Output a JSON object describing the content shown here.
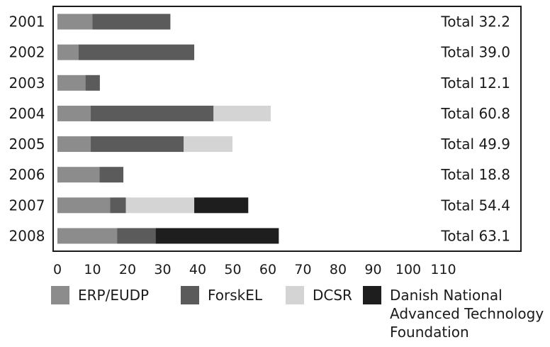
{
  "chart_data": {
    "type": "bar",
    "orientation": "horizontal",
    "stacked": true,
    "categories": [
      "2001",
      "2002",
      "2003",
      "2004",
      "2005",
      "2006",
      "2007",
      "2008"
    ],
    "series": [
      {
        "name": "ERP/EUDP",
        "color": "#8c8c8c",
        "values": [
          10.0,
          6.0,
          8.0,
          9.5,
          9.5,
          12.0,
          15.0,
          17.0
        ]
      },
      {
        "name": "ForskEL",
        "color": "#5b5b5b",
        "values": [
          22.2,
          33.0,
          4.1,
          35.0,
          26.5,
          6.8,
          4.5,
          11.0
        ]
      },
      {
        "name": "DCSR",
        "color": "#d4d4d4",
        "values": [
          0,
          0,
          0,
          16.3,
          13.9,
          0,
          19.5,
          0
        ]
      },
      {
        "name": "Danish National\nAdvanced Technology\nFoundation",
        "color": "#1e1e1e",
        "values": [
          0,
          0,
          0,
          0,
          0,
          0,
          15.4,
          35.1
        ]
      }
    ],
    "totals": [
      "Total 32.2",
      "Total 39.0",
      "Total 12.1",
      "Total 60.8",
      "Total 49.9",
      "Total 18.8",
      "Total 54.4",
      "Total 63.1"
    ],
    "xticks": [
      0,
      10,
      20,
      30,
      40,
      50,
      60,
      70,
      80,
      90,
      100,
      110
    ],
    "xlim": [
      0,
      130
    ],
    "grid": false,
    "legend_position": "bottom"
  }
}
